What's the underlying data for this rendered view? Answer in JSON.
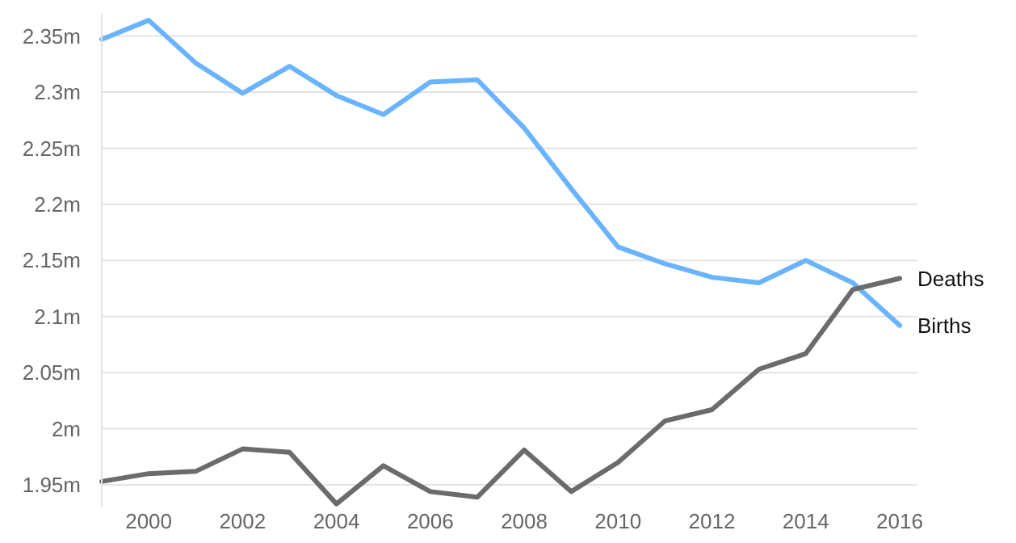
{
  "chart_data": {
    "type": "line",
    "x": [
      1999,
      2000,
      2001,
      2002,
      2003,
      2004,
      2005,
      2006,
      2007,
      2008,
      2009,
      2010,
      2011,
      2012,
      2013,
      2014,
      2015,
      2016
    ],
    "series": [
      {
        "name": "Births",
        "color": "#6ab4fe",
        "values": [
          2.347,
          2.364,
          2.326,
          2.299,
          2.323,
          2.297,
          2.28,
          2.309,
          2.311,
          2.268,
          2.214,
          2.162,
          2.147,
          2.135,
          2.13,
          2.15,
          2.13,
          2.092
        ]
      },
      {
        "name": "Deaths",
        "color": "#6b6b6b",
        "values": [
          1.953,
          1.96,
          1.962,
          1.982,
          1.979,
          1.933,
          1.967,
          1.944,
          1.939,
          1.981,
          1.944,
          1.97,
          2.007,
          2.017,
          2.053,
          2.067,
          2.124,
          2.134
        ]
      }
    ],
    "xlim": [
      1999,
      2016
    ],
    "xticks": [
      2000,
      2002,
      2004,
      2006,
      2008,
      2010,
      2012,
      2014,
      2016
    ],
    "ylim": [
      1.93,
      2.37
    ],
    "yticks": [
      {
        "value": 1.95,
        "label": "1.95m"
      },
      {
        "value": 2,
        "label": "2m"
      },
      {
        "value": 2.05,
        "label": "2.05m"
      },
      {
        "value": 2.1,
        "label": "2.1m"
      },
      {
        "value": 2.15,
        "label": "2.15m"
      },
      {
        "value": 2.2,
        "label": "2.2m"
      },
      {
        "value": 2.25,
        "label": "2.25m"
      },
      {
        "value": 2.3,
        "label": "2.3m"
      },
      {
        "value": 2.35,
        "label": "2.35m"
      }
    ],
    "grid": "y",
    "marker": "none",
    "line_style": "solid"
  }
}
